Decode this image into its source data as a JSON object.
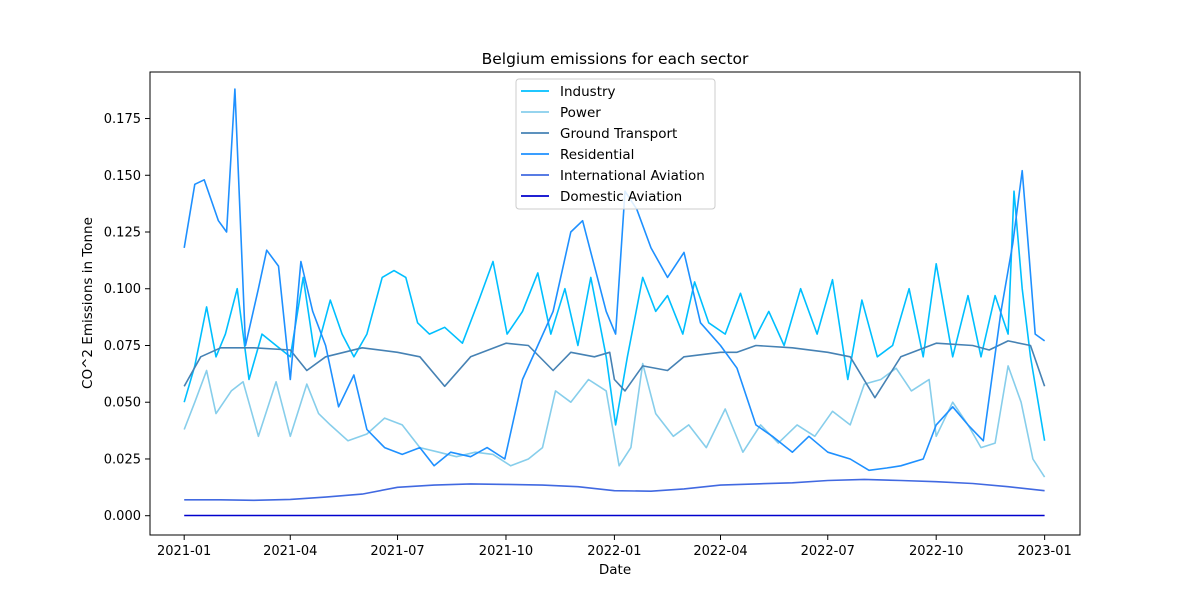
{
  "chart_data": {
    "type": "line",
    "title": "Belgium emissions for each sector",
    "xlabel": "Date",
    "ylabel": "CO^2 Emissions in Tonne",
    "x_range": [
      "2021-01-01",
      "2023-01-01"
    ],
    "xlim": [
      "2020-12-03",
      "2023-01-31"
    ],
    "ylim": [
      -0.0085,
      0.1955
    ],
    "x_ticks": [
      "2021-01",
      "2021-04",
      "2021-07",
      "2021-10",
      "2022-01",
      "2022-04",
      "2022-07",
      "2022-10",
      "2023-01"
    ],
    "y_ticks": [
      "0.000",
      "0.025",
      "0.050",
      "0.075",
      "0.100",
      "0.125",
      "0.150",
      "0.175"
    ],
    "grid": false,
    "legend_position": "upper-center",
    "series": [
      {
        "name": "Industry",
        "color": "#00BFFF",
        "points": [
          [
            "2021-01-01",
            0.05
          ],
          [
            "2021-01-10",
            0.066
          ],
          [
            "2021-01-20",
            0.092
          ],
          [
            "2021-01-28",
            0.07
          ],
          [
            "2021-02-05",
            0.08
          ],
          [
            "2021-02-15",
            0.1
          ],
          [
            "2021-02-25",
            0.06
          ],
          [
            "2021-03-08",
            0.08
          ],
          [
            "2021-03-20",
            0.075
          ],
          [
            "2021-04-01",
            0.07
          ],
          [
            "2021-04-12",
            0.105
          ],
          [
            "2021-04-22",
            0.07
          ],
          [
            "2021-05-05",
            0.095
          ],
          [
            "2021-05-15",
            0.08
          ],
          [
            "2021-05-25",
            0.07
          ],
          [
            "2021-06-05",
            0.08
          ],
          [
            "2021-06-18",
            0.105
          ],
          [
            "2021-06-28",
            0.108
          ],
          [
            "2021-07-08",
            0.105
          ],
          [
            "2021-07-18",
            0.085
          ],
          [
            "2021-07-28",
            0.08
          ],
          [
            "2021-08-10",
            0.083
          ],
          [
            "2021-08-25",
            0.076
          ],
          [
            "2021-09-08",
            0.095
          ],
          [
            "2021-09-20",
            0.112
          ],
          [
            "2021-10-02",
            0.08
          ],
          [
            "2021-10-15",
            0.09
          ],
          [
            "2021-10-28",
            0.107
          ],
          [
            "2021-11-08",
            0.08
          ],
          [
            "2021-11-20",
            0.1
          ],
          [
            "2021-12-01",
            0.075
          ],
          [
            "2021-12-12",
            0.105
          ],
          [
            "2021-12-25",
            0.07
          ],
          [
            "2022-01-02",
            0.04
          ],
          [
            "2022-01-12",
            0.07
          ],
          [
            "2022-01-25",
            0.105
          ],
          [
            "2022-02-05",
            0.09
          ],
          [
            "2022-02-15",
            0.097
          ],
          [
            "2022-02-28",
            0.08
          ],
          [
            "2022-03-10",
            0.103
          ],
          [
            "2022-03-22",
            0.085
          ],
          [
            "2022-04-05",
            0.08
          ],
          [
            "2022-04-18",
            0.098
          ],
          [
            "2022-04-30",
            0.078
          ],
          [
            "2022-05-12",
            0.09
          ],
          [
            "2022-05-25",
            0.075
          ],
          [
            "2022-06-08",
            0.1
          ],
          [
            "2022-06-22",
            0.08
          ],
          [
            "2022-07-05",
            0.104
          ],
          [
            "2022-07-18",
            0.06
          ],
          [
            "2022-07-30",
            0.095
          ],
          [
            "2022-08-12",
            0.07
          ],
          [
            "2022-08-25",
            0.075
          ],
          [
            "2022-09-08",
            0.1
          ],
          [
            "2022-09-20",
            0.07
          ],
          [
            "2022-10-01",
            0.111
          ],
          [
            "2022-10-15",
            0.07
          ],
          [
            "2022-10-28",
            0.097
          ],
          [
            "2022-11-08",
            0.07
          ],
          [
            "2022-11-20",
            0.097
          ],
          [
            "2022-12-01",
            0.08
          ],
          [
            "2022-12-06",
            0.143
          ],
          [
            "2022-12-13",
            0.1
          ],
          [
            "2022-12-20",
            0.07
          ],
          [
            "2023-01-01",
            0.033
          ]
        ]
      },
      {
        "name": "Power",
        "color": "#87CEEB",
        "points": [
          [
            "2021-01-01",
            0.038
          ],
          [
            "2021-01-10",
            0.05
          ],
          [
            "2021-01-20",
            0.064
          ],
          [
            "2021-01-28",
            0.045
          ],
          [
            "2021-02-10",
            0.055
          ],
          [
            "2021-02-20",
            0.059
          ],
          [
            "2021-03-05",
            0.035
          ],
          [
            "2021-03-20",
            0.059
          ],
          [
            "2021-04-01",
            0.035
          ],
          [
            "2021-04-15",
            0.058
          ],
          [
            "2021-04-25",
            0.045
          ],
          [
            "2021-05-05",
            0.04
          ],
          [
            "2021-05-20",
            0.033
          ],
          [
            "2021-06-05",
            0.036
          ],
          [
            "2021-06-20",
            0.043
          ],
          [
            "2021-07-05",
            0.04
          ],
          [
            "2021-07-20",
            0.03
          ],
          [
            "2021-08-05",
            0.028
          ],
          [
            "2021-08-20",
            0.026
          ],
          [
            "2021-09-05",
            0.028
          ],
          [
            "2021-09-20",
            0.027
          ],
          [
            "2021-10-05",
            0.022
          ],
          [
            "2021-10-20",
            0.025
          ],
          [
            "2021-11-01",
            0.03
          ],
          [
            "2021-11-12",
            0.055
          ],
          [
            "2021-11-25",
            0.05
          ],
          [
            "2021-12-10",
            0.06
          ],
          [
            "2021-12-25",
            0.055
          ],
          [
            "2022-01-05",
            0.022
          ],
          [
            "2022-01-15",
            0.03
          ],
          [
            "2022-01-25",
            0.067
          ],
          [
            "2022-02-05",
            0.045
          ],
          [
            "2022-02-20",
            0.035
          ],
          [
            "2022-03-05",
            0.04
          ],
          [
            "2022-03-20",
            0.03
          ],
          [
            "2022-04-05",
            0.047
          ],
          [
            "2022-04-20",
            0.028
          ],
          [
            "2022-05-05",
            0.04
          ],
          [
            "2022-05-20",
            0.032
          ],
          [
            "2022-06-05",
            0.04
          ],
          [
            "2022-06-20",
            0.035
          ],
          [
            "2022-07-05",
            0.046
          ],
          [
            "2022-07-20",
            0.04
          ],
          [
            "2022-08-01",
            0.058
          ],
          [
            "2022-08-15",
            0.06
          ],
          [
            "2022-08-28",
            0.065
          ],
          [
            "2022-09-10",
            0.055
          ],
          [
            "2022-09-25",
            0.06
          ],
          [
            "2022-10-01",
            0.035
          ],
          [
            "2022-10-15",
            0.05
          ],
          [
            "2022-10-28",
            0.04
          ],
          [
            "2022-11-08",
            0.03
          ],
          [
            "2022-11-20",
            0.032
          ],
          [
            "2022-12-01",
            0.066
          ],
          [
            "2022-12-12",
            0.05
          ],
          [
            "2022-12-22",
            0.025
          ],
          [
            "2023-01-01",
            0.017
          ]
        ]
      },
      {
        "name": "Ground Transport",
        "color": "#4682B4",
        "points": [
          [
            "2021-01-01",
            0.057
          ],
          [
            "2021-01-15",
            0.07
          ],
          [
            "2021-02-01",
            0.074
          ],
          [
            "2021-03-01",
            0.074
          ],
          [
            "2021-04-01",
            0.073
          ],
          [
            "2021-04-15",
            0.064
          ],
          [
            "2021-05-01",
            0.07
          ],
          [
            "2021-06-01",
            0.074
          ],
          [
            "2021-07-01",
            0.072
          ],
          [
            "2021-07-20",
            0.07
          ],
          [
            "2021-08-10",
            0.057
          ],
          [
            "2021-09-01",
            0.07
          ],
          [
            "2021-10-01",
            0.076
          ],
          [
            "2021-10-20",
            0.075
          ],
          [
            "2021-11-10",
            0.064
          ],
          [
            "2021-11-25",
            0.072
          ],
          [
            "2021-12-15",
            0.07
          ],
          [
            "2021-12-28",
            0.072
          ],
          [
            "2022-01-01",
            0.06
          ],
          [
            "2022-01-10",
            0.055
          ],
          [
            "2022-01-25",
            0.066
          ],
          [
            "2022-02-15",
            0.064
          ],
          [
            "2022-03-01",
            0.07
          ],
          [
            "2022-04-01",
            0.072
          ],
          [
            "2022-04-15",
            0.072
          ],
          [
            "2022-05-01",
            0.075
          ],
          [
            "2022-06-01",
            0.074
          ],
          [
            "2022-07-01",
            0.072
          ],
          [
            "2022-07-20",
            0.07
          ],
          [
            "2022-08-10",
            0.052
          ],
          [
            "2022-09-01",
            0.07
          ],
          [
            "2022-10-01",
            0.076
          ],
          [
            "2022-11-01",
            0.075
          ],
          [
            "2022-11-15",
            0.073
          ],
          [
            "2022-12-01",
            0.077
          ],
          [
            "2022-12-20",
            0.075
          ],
          [
            "2023-01-01",
            0.057
          ]
        ]
      },
      {
        "name": "Residential",
        "color": "#1E90FF",
        "points": [
          [
            "2021-01-01",
            0.118
          ],
          [
            "2021-01-10",
            0.146
          ],
          [
            "2021-01-18",
            0.148
          ],
          [
            "2021-01-30",
            0.13
          ],
          [
            "2021-02-06",
            0.125
          ],
          [
            "2021-02-13",
            0.188
          ],
          [
            "2021-02-22",
            0.075
          ],
          [
            "2021-03-05",
            0.1
          ],
          [
            "2021-03-12",
            0.117
          ],
          [
            "2021-03-22",
            0.11
          ],
          [
            "2021-04-01",
            0.06
          ],
          [
            "2021-04-10",
            0.112
          ],
          [
            "2021-04-20",
            0.09
          ],
          [
            "2021-05-01",
            0.075
          ],
          [
            "2021-05-12",
            0.048
          ],
          [
            "2021-05-25",
            0.062
          ],
          [
            "2021-06-05",
            0.038
          ],
          [
            "2021-06-20",
            0.03
          ],
          [
            "2021-07-05",
            0.027
          ],
          [
            "2021-07-20",
            0.03
          ],
          [
            "2021-08-01",
            0.022
          ],
          [
            "2021-08-15",
            0.028
          ],
          [
            "2021-09-01",
            0.026
          ],
          [
            "2021-09-15",
            0.03
          ],
          [
            "2021-09-30",
            0.025
          ],
          [
            "2021-10-15",
            0.06
          ],
          [
            "2021-10-28",
            0.075
          ],
          [
            "2021-11-10",
            0.09
          ],
          [
            "2021-11-25",
            0.125
          ],
          [
            "2021-12-05",
            0.13
          ],
          [
            "2021-12-15",
            0.11
          ],
          [
            "2021-12-25",
            0.09
          ],
          [
            "2022-01-02",
            0.08
          ],
          [
            "2022-01-10",
            0.143
          ],
          [
            "2022-01-20",
            0.135
          ],
          [
            "2022-02-01",
            0.118
          ],
          [
            "2022-02-15",
            0.105
          ],
          [
            "2022-03-01",
            0.116
          ],
          [
            "2022-03-15",
            0.085
          ],
          [
            "2022-04-01",
            0.075
          ],
          [
            "2022-04-15",
            0.065
          ],
          [
            "2022-05-01",
            0.04
          ],
          [
            "2022-05-15",
            0.035
          ],
          [
            "2022-06-01",
            0.028
          ],
          [
            "2022-06-15",
            0.035
          ],
          [
            "2022-07-01",
            0.028
          ],
          [
            "2022-07-20",
            0.025
          ],
          [
            "2022-08-05",
            0.02
          ],
          [
            "2022-08-20",
            0.021
          ],
          [
            "2022-09-01",
            0.022
          ],
          [
            "2022-09-20",
            0.025
          ],
          [
            "2022-10-01",
            0.04
          ],
          [
            "2022-10-15",
            0.048
          ],
          [
            "2022-10-28",
            0.04
          ],
          [
            "2022-11-10",
            0.033
          ],
          [
            "2022-11-25",
            0.09
          ],
          [
            "2022-12-05",
            0.12
          ],
          [
            "2022-12-13",
            0.152
          ],
          [
            "2022-12-18",
            0.12
          ],
          [
            "2022-12-24",
            0.08
          ],
          [
            "2023-01-01",
            0.077
          ]
        ]
      },
      {
        "name": "International Aviation",
        "color": "#4169E1",
        "points": [
          [
            "2021-01-01",
            0.007
          ],
          [
            "2021-02-01",
            0.007
          ],
          [
            "2021-03-01",
            0.0068
          ],
          [
            "2021-04-01",
            0.0072
          ],
          [
            "2021-05-01",
            0.0082
          ],
          [
            "2021-06-01",
            0.0095
          ],
          [
            "2021-07-01",
            0.0125
          ],
          [
            "2021-08-01",
            0.0135
          ],
          [
            "2021-09-01",
            0.014
          ],
          [
            "2021-10-01",
            0.0138
          ],
          [
            "2021-11-01",
            0.0135
          ],
          [
            "2021-12-01",
            0.0128
          ],
          [
            "2022-01-01",
            0.011
          ],
          [
            "2022-02-01",
            0.0108
          ],
          [
            "2022-03-01",
            0.0118
          ],
          [
            "2022-04-01",
            0.0135
          ],
          [
            "2022-05-01",
            0.014
          ],
          [
            "2022-06-01",
            0.0145
          ],
          [
            "2022-07-01",
            0.0155
          ],
          [
            "2022-08-01",
            0.016
          ],
          [
            "2022-09-01",
            0.0155
          ],
          [
            "2022-10-01",
            0.015
          ],
          [
            "2022-11-01",
            0.0142
          ],
          [
            "2022-12-01",
            0.0128
          ],
          [
            "2023-01-01",
            0.011
          ]
        ]
      },
      {
        "name": "Domestic Aviation",
        "color": "#0000CD",
        "points": [
          [
            "2021-01-01",
            0.0001
          ],
          [
            "2023-01-01",
            0.0001
          ]
        ]
      }
    ]
  }
}
